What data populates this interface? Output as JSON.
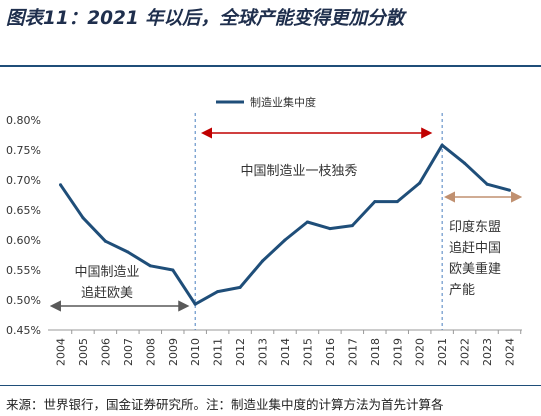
{
  "figure": {
    "title": "图表11：2021 年以后，全球产能变得更加分散",
    "source": "来源：世界银行，国金证券研究所。注：制造业集中度的计算方法为首先计算各"
  },
  "chart_data": {
    "type": "line",
    "categories": [
      "2004",
      "2005",
      "2006",
      "2007",
      "2008",
      "2009",
      "2010",
      "2011",
      "2012",
      "2013",
      "2014",
      "2015",
      "2016",
      "2017",
      "2018",
      "2019",
      "2020",
      "2021",
      "2022",
      "2023",
      "2024"
    ],
    "series": [
      {
        "name": "制造业集中度",
        "color": "#1f4e79",
        "values": [
          0.692,
          0.637,
          0.598,
          0.58,
          0.557,
          0.55,
          0.493,
          0.514,
          0.521,
          0.565,
          0.6,
          0.63,
          0.619,
          0.624,
          0.664,
          0.664,
          0.695,
          0.758,
          0.728,
          0.693,
          0.683
        ]
      }
    ],
    "ylim": [
      0.45,
      0.8
    ],
    "yticks": [
      "0.45%",
      "0.50%",
      "0.55%",
      "0.60%",
      "0.65%",
      "0.70%",
      "0.75%",
      "0.80%"
    ],
    "grid": false,
    "legend_position": "top-left",
    "annotations": [
      {
        "text": "中国制造业一枝独秀",
        "color": "#c00000",
        "from": "2010",
        "to": "2021"
      },
      {
        "text": "中国制造业\n追赶欧美",
        "color": "#595959",
        "from": "2004",
        "to": "2010"
      },
      {
        "text": "印度东盟\n追赶中国\n欧美重建\n产能",
        "color": "#c09070",
        "from": "2021",
        "to": "2024"
      }
    ],
    "divider_years": [
      "2010",
      "2021"
    ]
  }
}
